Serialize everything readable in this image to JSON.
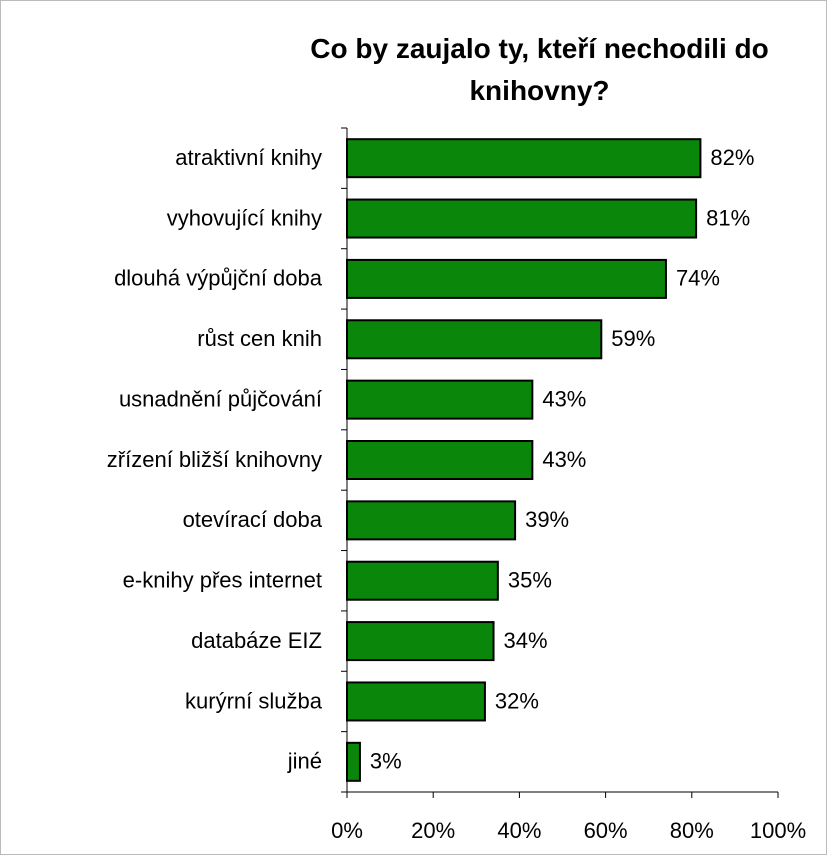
{
  "chart_data": {
    "type": "barh",
    "title": "Co by zaujalo ty, kteří nechodili do knihovny?",
    "categories": [
      "atraktivní knihy",
      "vyhovující knihy",
      "dlouhá výpůjční doba",
      "růst cen knih",
      "usnadnění půjčování",
      "zřízení bližší knihovny",
      "otevírací doba",
      "e-knihy přes internet",
      "databáze EIZ",
      "kurýrní služba",
      "jiné"
    ],
    "values": [
      82,
      81,
      74,
      59,
      43,
      43,
      39,
      35,
      34,
      32,
      3
    ],
    "value_labels": [
      "82%",
      "81%",
      "74%",
      "59%",
      "43%",
      "43%",
      "39%",
      "35%",
      "34%",
      "32%",
      "3%"
    ],
    "color": "#0a870a",
    "xlim": [
      0,
      100
    ],
    "xticks": [
      {
        "value": 0,
        "label": "0%"
      },
      {
        "value": 20,
        "label": "20%"
      },
      {
        "value": 40,
        "label": "40%"
      },
      {
        "value": 60,
        "label": "60%"
      },
      {
        "value": 80,
        "label": "80%"
      },
      {
        "value": 100,
        "label": "100%"
      }
    ]
  }
}
